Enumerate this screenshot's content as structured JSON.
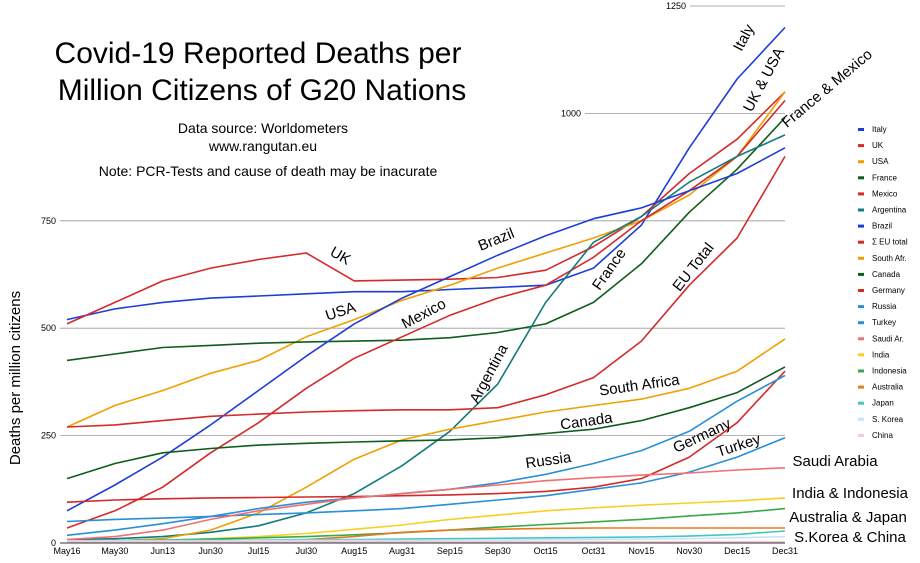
{
  "chart_data": {
    "type": "line",
    "title_lines": [
      "Covid-19 Reported Deaths per",
      "Million Citizens of G20 Nations"
    ],
    "notes": [
      "Data source: Worldometers",
      "www.rangutan.eu",
      "Note: PCR-Tests and cause of death may be inacurate"
    ],
    "ylabel": "Deaths per million citizens",
    "xlabel": "",
    "ylim": [
      0,
      1250
    ],
    "y_ticks": [
      0,
      250,
      500,
      750,
      1000,
      1250
    ],
    "x": [
      "May16",
      "May30",
      "Jun13",
      "Jun30",
      "Jul15",
      "Jul30",
      "Aug15",
      "Aug31",
      "Sep15",
      "Sep30",
      "Oct15",
      "Oct31",
      "Nov15",
      "Nov30",
      "Dec15",
      "Dec31"
    ],
    "grid": true,
    "legend_position": "right",
    "series": [
      {
        "name": "Italy",
        "color": "#1c3fd6",
        "values": [
          520,
          545,
          560,
          570,
          575,
          580,
          585,
          585,
          590,
          595,
          600,
          640,
          740,
          920,
          1080,
          1200
        ]
      },
      {
        "name": "UK",
        "color": "#d42a2a",
        "values": [
          510,
          560,
          610,
          640,
          660,
          675,
          610,
          612,
          614,
          618,
          635,
          690,
          760,
          860,
          940,
          1050
        ]
      },
      {
        "name": "USA",
        "color": "#f0a000",
        "values": [
          270,
          320,
          355,
          395,
          425,
          480,
          520,
          565,
          600,
          640,
          675,
          710,
          750,
          810,
          900,
          1050
        ]
      },
      {
        "name": "France",
        "color": "#0d5e1a",
        "values": [
          425,
          440,
          455,
          460,
          465,
          468,
          470,
          472,
          478,
          490,
          510,
          560,
          650,
          770,
          870,
          990
        ]
      },
      {
        "name": "Mexico",
        "color": "#d42a2a",
        "values": [
          35,
          75,
          130,
          210,
          280,
          360,
          430,
          480,
          530,
          570,
          600,
          665,
          750,
          820,
          900,
          1030
        ]
      },
      {
        "name": "Argentina",
        "color": "#147a7a",
        "values": [
          8,
          10,
          15,
          25,
          40,
          70,
          115,
          180,
          260,
          370,
          560,
          700,
          760,
          840,
          900,
          950
        ]
      },
      {
        "name": "Brazil",
        "color": "#1c3fd6",
        "values": [
          75,
          135,
          200,
          275,
          355,
          435,
          510,
          570,
          620,
          670,
          715,
          755,
          780,
          820,
          860,
          920
        ]
      },
      {
        "name": "Σ EU total",
        "color": "#d42a2a",
        "values": [
          270,
          275,
          285,
          295,
          300,
          305,
          308,
          310,
          310,
          315,
          345,
          385,
          470,
          600,
          710,
          900
        ]
      },
      {
        "name": "South Afr.",
        "color": "#f0a000",
        "values": [
          3,
          5,
          10,
          30,
          70,
          130,
          195,
          240,
          265,
          285,
          305,
          320,
          335,
          360,
          400,
          475
        ]
      },
      {
        "name": "Canada",
        "color": "#0d5e1a",
        "values": [
          150,
          185,
          210,
          220,
          228,
          232,
          235,
          238,
          240,
          245,
          255,
          265,
          285,
          315,
          350,
          410
        ]
      },
      {
        "name": "Germany",
        "color": "#d42a2a",
        "values": [
          95,
          100,
          103,
          105,
          106,
          107,
          108,
          110,
          112,
          115,
          120,
          130,
          150,
          200,
          280,
          400
        ]
      },
      {
        "name": "Russia",
        "color": "#2a8fd6",
        "values": [
          18,
          30,
          45,
          62,
          80,
          95,
          105,
          115,
          125,
          140,
          160,
          185,
          215,
          260,
          330,
          390
        ]
      },
      {
        "name": "Turkey",
        "color": "#2a8fd6",
        "values": [
          50,
          55,
          58,
          62,
          66,
          70,
          75,
          80,
          90,
          100,
          110,
          125,
          140,
          165,
          200,
          245
        ]
      },
      {
        "name": "Saudi Ar.",
        "color": "#f07070",
        "values": [
          8,
          15,
          30,
          55,
          75,
          90,
          105,
          115,
          125,
          135,
          145,
          152,
          158,
          163,
          170,
          175
        ]
      },
      {
        "name": "India",
        "color": "#f7d020",
        "values": [
          2,
          3,
          6,
          10,
          15,
          22,
          32,
          42,
          55,
          65,
          75,
          82,
          88,
          93,
          98,
          105
        ]
      },
      {
        "name": "Indonesia",
        "color": "#3aa84a",
        "values": [
          4,
          5,
          7,
          9,
          12,
          15,
          19,
          24,
          30,
          37,
          43,
          49,
          55,
          63,
          70,
          80
        ]
      },
      {
        "name": "Australia",
        "color": "#e87a1a",
        "values": [
          4,
          4,
          4,
          4,
          5,
          8,
          15,
          25,
          30,
          32,
          34,
          35,
          35,
          35,
          35,
          35
        ]
      },
      {
        "name": "Japan",
        "color": "#40c8c0",
        "values": [
          5,
          6,
          7,
          7,
          7,
          8,
          8,
          9,
          10,
          11,
          12,
          13,
          14,
          16,
          20,
          28
        ]
      },
      {
        "name": "S. Korea",
        "color": "#c8e4f4",
        "values": [
          5,
          5,
          5,
          5,
          6,
          6,
          6,
          6,
          7,
          7,
          8,
          8,
          9,
          10,
          12,
          15
        ]
      },
      {
        "name": "China",
        "color": "#f8c8d8",
        "values": [
          3,
          3,
          3,
          3,
          3,
          3,
          3,
          3,
          3,
          3,
          3,
          3,
          3,
          3,
          3,
          3
        ]
      }
    ],
    "annotations": [
      {
        "text": "Italy",
        "angle": -62
      },
      {
        "text": "UK & USA",
        "angle": -62
      },
      {
        "text": "France & Mexico",
        "angle": -40
      },
      {
        "text": "Brazil",
        "angle": -22
      },
      {
        "text": "UK",
        "angle": 30
      },
      {
        "text": "USA",
        "angle": -18
      },
      {
        "text": "Mexico",
        "angle": -28
      },
      {
        "text": "France",
        "angle": -55
      },
      {
        "text": "EU Total",
        "angle": -52
      },
      {
        "text": "Argentina",
        "angle": -62
      },
      {
        "text": "South Africa",
        "angle": -8
      },
      {
        "text": "Canada",
        "angle": -8
      },
      {
        "text": "Germany",
        "angle": -25
      },
      {
        "text": "Turkey",
        "angle": -18
      },
      {
        "text": "Russia",
        "angle": -8
      },
      {
        "text": "Saudi Arabia",
        "angle": 0
      },
      {
        "text": "India & Indonesia",
        "angle": 0
      },
      {
        "text": "Australia & Japan",
        "angle": 0
      },
      {
        "text": "S.Korea & China",
        "angle": 0
      }
    ]
  }
}
